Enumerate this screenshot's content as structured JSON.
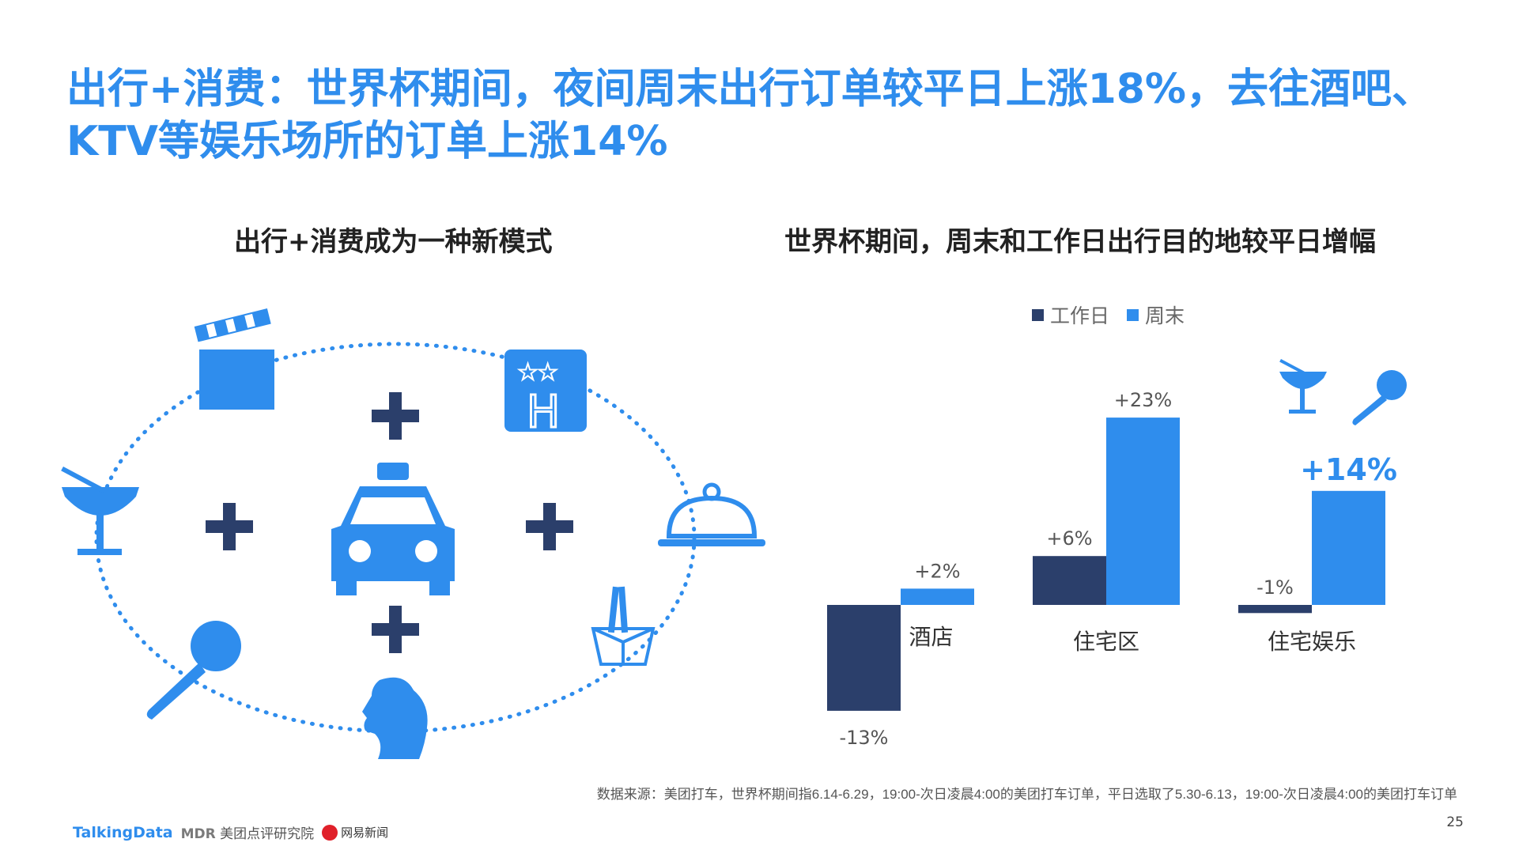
{
  "page": {
    "title": "出行+消费：世界杯期间，夜间周末出行订单较平日上涨18%，去往酒吧、KTV等娱乐场所的订单上涨14%",
    "left_subtitle": "出行+消费成为一种新模式",
    "right_subtitle": "世界杯期间，周末和工作日出行目的地较平日增幅",
    "source": "数据来源：美团打车，世界杯期间指6.14-6.29，19:00-次日凌晨4:00的美团打车订单，平日选取了5.30-6.13，19:00-次日凌晨4:00的美团打车订单",
    "page_number": "25",
    "logos": {
      "talkingdata": "TalkingData",
      "mdr": "MDR",
      "meituan": "美团点评研究院",
      "netease": "网易新闻"
    }
  },
  "diagram": {
    "icons": [
      "clapperboard-icon",
      "hotel-icon",
      "cocktail-icon",
      "taxi-icon",
      "food-cloche-icon",
      "microphone-icon",
      "woman-silhouette-icon",
      "takeout-box-icon"
    ],
    "plus_sign": "+"
  },
  "colors": {
    "accent": "#2f8ded",
    "workday": "#2b3f6b",
    "weekend": "#2f8ded",
    "plus": "#2b3f6b"
  },
  "chart_data": {
    "type": "bar",
    "categories": [
      "酒店",
      "住宅区",
      "住宅娱乐"
    ],
    "series": [
      {
        "name": "工作日",
        "values": [
          -13,
          6,
          -1
        ],
        "labels": [
          "-13%",
          "+6%",
          "-1%"
        ]
      },
      {
        "name": "周末",
        "values": [
          2,
          23,
          14
        ],
        "labels": [
          "+2%",
          "+23%",
          "+14%"
        ]
      }
    ],
    "title": "世界杯期间，周末和工作日出行目的地较平日增幅",
    "legend": "top",
    "grid": false,
    "ylim": [
      -13,
      23
    ],
    "unit": "%"
  }
}
